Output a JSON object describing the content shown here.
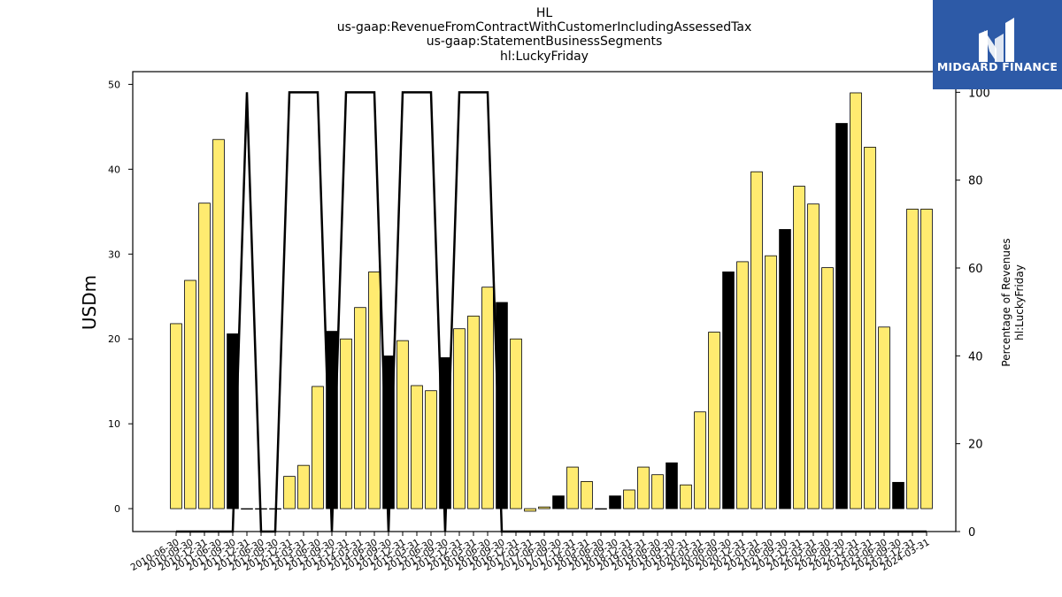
{
  "title_lines": [
    "HL",
    "us-gaap:RevenueFromContractWithCustomerIncludingAssessedTax",
    "us-gaap:StatementBusinessSegments",
    "hl:LuckyFriday"
  ],
  "logo": {
    "text": "MIDGARD FINANCE",
    "background": "#2d5aa7"
  },
  "colors": {
    "bar_positive": "#ffeb70",
    "bar_negative": "#000000",
    "line": "#000000"
  },
  "chart_data": {
    "type": "bar",
    "title": "HL\nus-gaap:RevenueFromContractWithCustomerIncludingAssessedTax\nus-gaap:StatementBusinessSegments\nhl:LuckyFriday",
    "ylabel": "USDm",
    "ylabel_right": [
      "Percentage of Revenues",
      "hl:LuckyFriday"
    ],
    "ylim": [
      -2.7,
      51.5
    ],
    "ylim_right": [
      0,
      104.7
    ],
    "yticks": [
      0,
      10,
      20,
      30,
      40,
      50
    ],
    "yticks_right": [
      0,
      20,
      40,
      60,
      80,
      100
    ],
    "categories": [
      "2010-06-30",
      "2010-09-30",
      "2010-12-31",
      "2011-06-30",
      "2011-09-30",
      "2011-12-31",
      "2012-06-30",
      "2012-09-30",
      "2012-12-31",
      "2013-03-31",
      "2013-06-30",
      "2013-09-30",
      "2013-12-31",
      "2014-03-31",
      "2014-06-30",
      "2014-09-30",
      "2014-12-31",
      "2015-03-31",
      "2015-06-30",
      "2015-09-30",
      "2015-12-31",
      "2016-03-31",
      "2016-06-30",
      "2016-09-30",
      "2016-12-31",
      "2017-03-31",
      "2017-06-30",
      "2017-09-30",
      "2017-12-31",
      "2018-03-31",
      "2018-06-30",
      "2018-09-30",
      "2018-12-31",
      "2019-03-31",
      "2019-06-30",
      "2019-09-30",
      "2019-12-31",
      "2020-03-31",
      "2020-06-30",
      "2020-09-30",
      "2020-12-31",
      "2021-03-31",
      "2021-06-30",
      "2021-09-30",
      "2021-12-31",
      "2022-03-31",
      "2022-06-30",
      "2022-09-30",
      "2022-12-31",
      "2023-03-31",
      "2023-06-30",
      "2023-09-30",
      "2023-12-31",
      "2024-03-31"
    ],
    "series": [
      {
        "type": "bar",
        "values": [
          21.8,
          26.9,
          36.0,
          43.5,
          20.6,
          0,
          0,
          0,
          3.8,
          5.1,
          14.4,
          20.9,
          20.0,
          23.7,
          27.9,
          18.0,
          19.8,
          14.5,
          13.9,
          17.8,
          21.2,
          22.7,
          26.1,
          24.3,
          20.0,
          -0.3,
          0.2,
          1.5,
          4.9,
          3.2,
          0.0,
          1.5,
          2.2,
          4.9,
          4.0,
          5.4,
          2.8,
          11.4,
          20.8,
          27.9,
          29.1,
          39.7,
          29.8,
          32.9,
          38.0,
          35.9,
          28.4,
          45.4,
          49.0,
          42.6,
          21.4,
          3.1,
          35.3,
          35.3
        ],
        "negative_change": [
          false,
          false,
          false,
          false,
          true,
          false,
          false,
          false,
          false,
          false,
          false,
          true,
          false,
          false,
          false,
          true,
          false,
          false,
          false,
          true,
          false,
          false,
          false,
          true,
          false,
          false,
          false,
          true,
          false,
          false,
          true,
          true,
          false,
          false,
          false,
          true,
          false,
          false,
          false,
          true,
          false,
          false,
          false,
          true,
          false,
          false,
          false,
          true,
          false,
          false,
          false,
          true,
          false,
          false
        ]
      },
      {
        "type": "line",
        "axis": "right",
        "values": [
          0,
          0,
          0,
          0,
          0,
          100,
          0,
          0,
          100,
          100,
          100,
          0,
          100,
          100,
          100,
          0,
          100,
          100,
          100,
          0,
          100,
          100,
          100,
          0,
          0,
          0,
          0,
          0,
          0,
          0,
          0,
          0,
          0,
          0,
          0,
          0,
          0,
          0,
          0,
          0,
          0,
          0,
          0,
          0,
          0,
          0,
          0,
          0,
          0,
          0,
          0,
          0,
          0,
          0
        ]
      }
    ],
    "grid": false,
    "legend": "none"
  }
}
